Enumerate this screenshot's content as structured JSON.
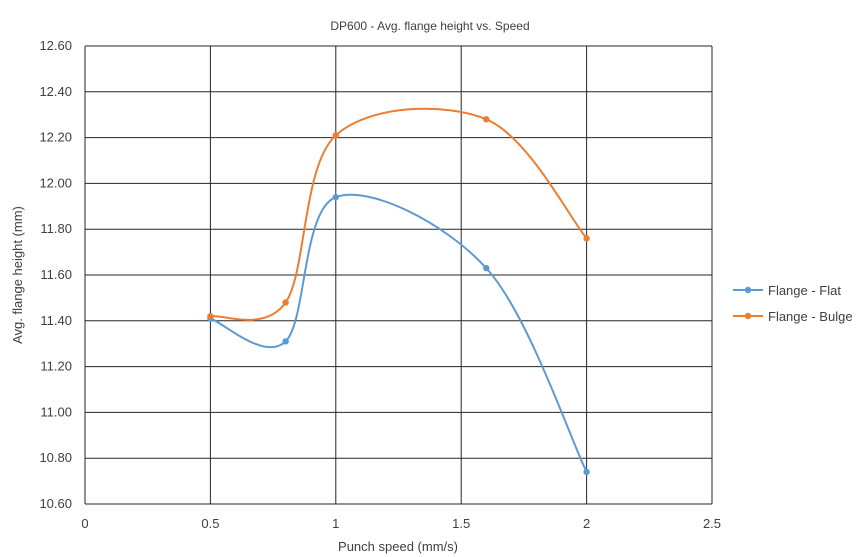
{
  "chart_data": {
    "type": "line",
    "title": "DP600 - Avg. flange height vs. Speed",
    "xlabel": "Punch speed (mm/s)",
    "ylabel": "Avg. flange height (mm)",
    "xlim": [
      0,
      2.5
    ],
    "ylim": [
      10.6,
      12.6
    ],
    "x_ticks": [
      "0",
      "0.5",
      "1",
      "1.5",
      "2",
      "2.5"
    ],
    "y_ticks": [
      "10.60",
      "10.80",
      "11.00",
      "11.20",
      "11.40",
      "11.60",
      "11.80",
      "12.00",
      "12.20",
      "12.40",
      "12.60"
    ],
    "grid": true,
    "legend_position": "right",
    "smooth": true,
    "series": [
      {
        "name": "Flange - Flat",
        "color": "#5b9bd5",
        "points": [
          [
            0.5,
            11.41
          ],
          [
            0.8,
            11.31
          ],
          [
            1.0,
            11.94
          ],
          [
            1.6,
            11.63
          ],
          [
            2.0,
            10.74
          ]
        ]
      },
      {
        "name": "Flange - Bulge",
        "color": "#ed7d31",
        "points": [
          [
            0.5,
            11.42
          ],
          [
            0.8,
            11.48
          ],
          [
            1.0,
            12.21
          ],
          [
            1.6,
            12.28
          ],
          [
            2.0,
            11.76
          ]
        ]
      }
    ]
  }
}
